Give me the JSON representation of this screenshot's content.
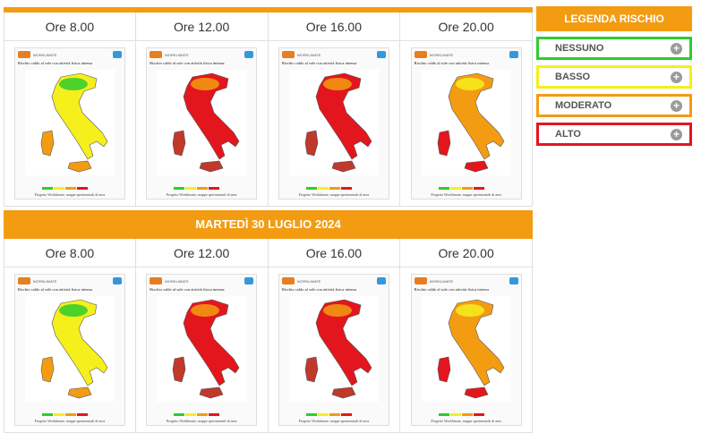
{
  "colors": {
    "accent": "#f39c12",
    "nessuno": "#2ecc2e",
    "basso": "#f5ef1c",
    "moderato": "#f39c12",
    "alto": "#e3161d"
  },
  "days": [
    {
      "title": "",
      "slots": [
        {
          "time": "Ore 8.00",
          "risk": "low"
        },
        {
          "time": "Ore 12.00",
          "risk": "high"
        },
        {
          "time": "Ore 16.00",
          "risk": "high"
        },
        {
          "time": "Ore 20.00",
          "risk": "moderate"
        }
      ]
    },
    {
      "title": "MARTEDÌ 30 LUGLIO 2024",
      "slots": [
        {
          "time": "Ore 8.00",
          "risk": "low"
        },
        {
          "time": "Ore 12.00",
          "risk": "high"
        },
        {
          "time": "Ore 16.00",
          "risk": "high"
        },
        {
          "time": "Ore 20.00",
          "risk": "moderate"
        }
      ]
    }
  ],
  "map": {
    "logo_text": "WORKLIMATE",
    "title": "Rischio caldo al sole con attività fisica intensa",
    "footer": "Progetto Worklimate, mappe sperimentali di area"
  },
  "legend": {
    "title": "LEGENDA RISCHIO",
    "items": [
      {
        "label": "NESSUNO",
        "icon": "plus-circle-icon"
      },
      {
        "label": "BASSO",
        "icon": "plus-circle-icon"
      },
      {
        "label": "MODERATO",
        "icon": "plus-circle-icon"
      },
      {
        "label": "ALTO",
        "icon": "plus-circle-icon"
      }
    ]
  }
}
